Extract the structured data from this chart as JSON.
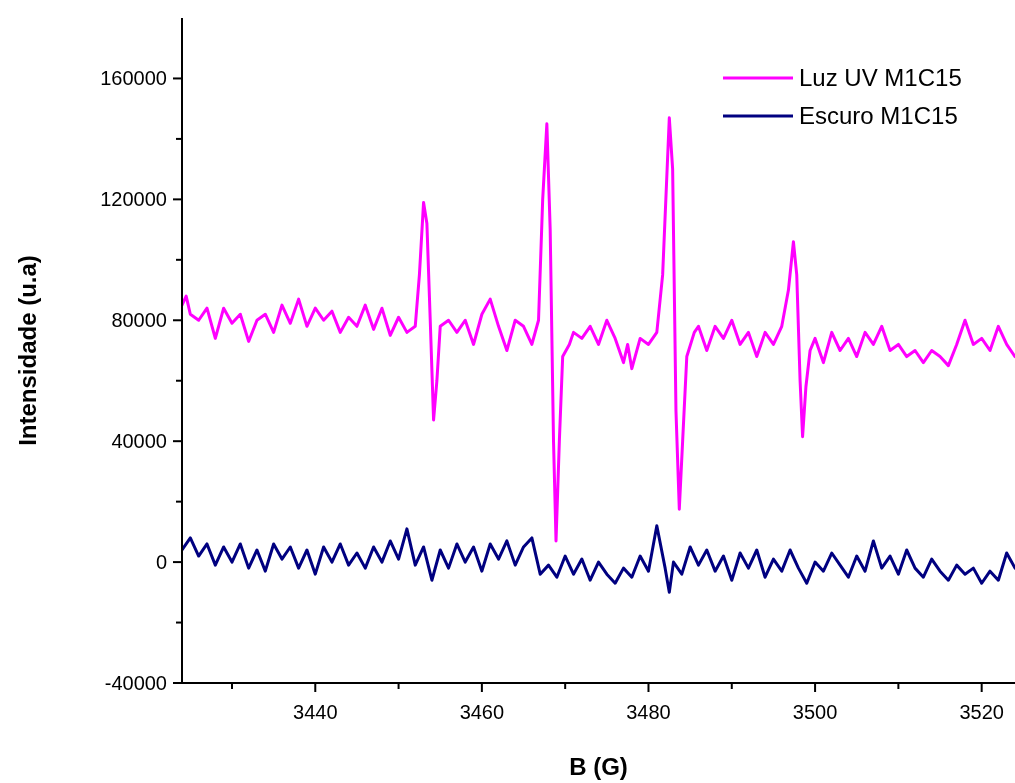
{
  "chart_data": {
    "type": "line",
    "xlabel": "B (G)",
    "ylabel": "Intensidade (u.a)",
    "xlim": [
      3424,
      3524
    ],
    "ylim": [
      -40000,
      180000
    ],
    "xticks": [
      {
        "value": 3430,
        "label": null
      },
      3440,
      {
        "value": 3450,
        "label": null
      },
      3460,
      {
        "value": 3470,
        "label": null
      },
      3480,
      {
        "value": 3490,
        "label": null
      },
      3500,
      {
        "value": 3510,
        "label": null
      },
      3520
    ],
    "yticks": [
      -40000,
      {
        "value": -20000,
        "label": null
      },
      0,
      {
        "value": 20000,
        "label": null
      },
      40000,
      {
        "value": 60000,
        "label": null
      },
      80000,
      {
        "value": 100000,
        "label": null
      },
      120000,
      {
        "value": 140000,
        "label": null
      },
      160000
    ],
    "grid": false,
    "legend": "top right",
    "line_style": "solid",
    "marker": "none",
    "series": [
      {
        "name": "Luz UV M1C15",
        "color": "#ff00ff",
        "x": [
          3424,
          3424.5,
          3425,
          3426,
          3427,
          3428,
          3429,
          3430,
          3431,
          3432,
          3433,
          3434,
          3435,
          3436,
          3437,
          3438,
          3439,
          3440,
          3441,
          3442,
          3443,
          3444,
          3445,
          3446,
          3447,
          3448,
          3449,
          3450,
          3451,
          3452,
          3452.5,
          3453,
          3453.4,
          3453.8,
          3454.2,
          3454.6,
          3455,
          3456,
          3457,
          3458,
          3459,
          3460,
          3461,
          3462,
          3463,
          3464,
          3465,
          3466,
          3466.8,
          3467.3,
          3467.8,
          3468.2,
          3468.6,
          3468.9,
          3469.3,
          3469.7,
          3470.5,
          3471,
          3472,
          3473,
          3474,
          3475,
          3476,
          3477,
          3477.5,
          3478,
          3479,
          3480,
          3481,
          3481.7,
          3482.5,
          3482.9,
          3483.3,
          3483.7,
          3484.1,
          3484.6,
          3485.5,
          3486,
          3487,
          3488,
          3489,
          3490,
          3491,
          3492,
          3493,
          3494,
          3495,
          3496,
          3496.8,
          3497.4,
          3497.8,
          3498.2,
          3498.5,
          3498.9,
          3499.4,
          3500,
          3501,
          3502,
          3503,
          3504,
          3505,
          3506,
          3507,
          3508,
          3509,
          3510,
          3511,
          3512,
          3513,
          3514,
          3515,
          3516,
          3517,
          3518,
          3519,
          3520,
          3521,
          3522,
          3523,
          3524
        ],
        "values": [
          85000,
          88000,
          82000,
          80000,
          84000,
          74000,
          84000,
          79000,
          82000,
          73000,
          80000,
          82000,
          76000,
          85000,
          79000,
          87000,
          78000,
          84000,
          80000,
          83000,
          76000,
          81000,
          78000,
          85000,
          77000,
          84000,
          75000,
          81000,
          76000,
          78000,
          95000,
          119000,
          112000,
          80000,
          47000,
          60000,
          78000,
          80000,
          76000,
          80000,
          72000,
          82000,
          87000,
          78000,
          70000,
          80000,
          78000,
          72000,
          80000,
          120000,
          145000,
          110000,
          40000,
          7000,
          40000,
          68000,
          72000,
          76000,
          74000,
          78000,
          72000,
          80000,
          74000,
          66000,
          72000,
          64000,
          74000,
          72000,
          76000,
          95000,
          147000,
          130000,
          50000,
          17500,
          40000,
          68000,
          76000,
          78000,
          70000,
          78000,
          74000,
          80000,
          72000,
          76000,
          68000,
          76000,
          72000,
          78000,
          90000,
          106000,
          95000,
          60000,
          41500,
          58000,
          70000,
          74000,
          66000,
          76000,
          70000,
          74000,
          68000,
          76000,
          72000,
          78000,
          70000,
          72000,
          68000,
          70000,
          66000,
          70000,
          68000,
          65000,
          72000,
          80000,
          72000,
          74000,
          70000,
          78000,
          72000,
          68000
        ]
      },
      {
        "name": "Escuro M1C15",
        "color": "#000080",
        "x": [
          3424,
          3425,
          3426,
          3427,
          3428,
          3429,
          3430,
          3431,
          3432,
          3433,
          3434,
          3435,
          3436,
          3437,
          3438,
          3439,
          3440,
          3441,
          3442,
          3443,
          3444,
          3445,
          3446,
          3447,
          3448,
          3449,
          3450,
          3451,
          3452,
          3453,
          3454,
          3455,
          3456,
          3457,
          3458,
          3459,
          3460,
          3461,
          3462,
          3463,
          3464,
          3465,
          3466,
          3467,
          3468,
          3469,
          3470,
          3471,
          3472,
          3473,
          3474,
          3475,
          3476,
          3477,
          3478,
          3479,
          3480,
          3481,
          3482,
          3482.5,
          3483,
          3484,
          3485,
          3486,
          3487,
          3488,
          3489,
          3490,
          3491,
          3492,
          3493,
          3494,
          3495,
          3496,
          3497,
          3498,
          3499,
          3500,
          3501,
          3502,
          3503,
          3504,
          3505,
          3506,
          3507,
          3508,
          3509,
          3510,
          3511,
          3512,
          3513,
          3514,
          3515,
          3516,
          3517,
          3518,
          3519,
          3520,
          3521,
          3522,
          3523,
          3524
        ],
        "values": [
          4000,
          8000,
          2000,
          6000,
          -1000,
          5000,
          0,
          6000,
          -2000,
          4000,
          -3000,
          6000,
          1000,
          5000,
          -2000,
          4000,
          -4000,
          5000,
          0,
          6000,
          -1000,
          3000,
          -2000,
          5000,
          0,
          7000,
          1000,
          11000,
          -1000,
          5000,
          -6000,
          4000,
          -2000,
          6000,
          0,
          5000,
          -3000,
          6000,
          1000,
          7000,
          -1000,
          5000,
          8000,
          -4000,
          -1000,
          -5000,
          2000,
          -4000,
          1000,
          -6000,
          0,
          -4000,
          -7000,
          -2000,
          -5000,
          2000,
          -3000,
          12000,
          -2000,
          -10000,
          0,
          -4000,
          5000,
          -1000,
          4000,
          -3000,
          2000,
          -6000,
          3000,
          -2000,
          4000,
          -5000,
          1000,
          -3000,
          4000,
          -2000,
          -7000,
          0,
          -3000,
          3000,
          -1000,
          -5000,
          2000,
          -3000,
          7000,
          -2000,
          2000,
          -4000,
          4000,
          -2000,
          -5000,
          1000,
          -3000,
          -6000,
          -1000,
          -4000,
          -2000,
          -7000,
          -3000,
          -6000,
          3000,
          -2000
        ]
      }
    ]
  }
}
